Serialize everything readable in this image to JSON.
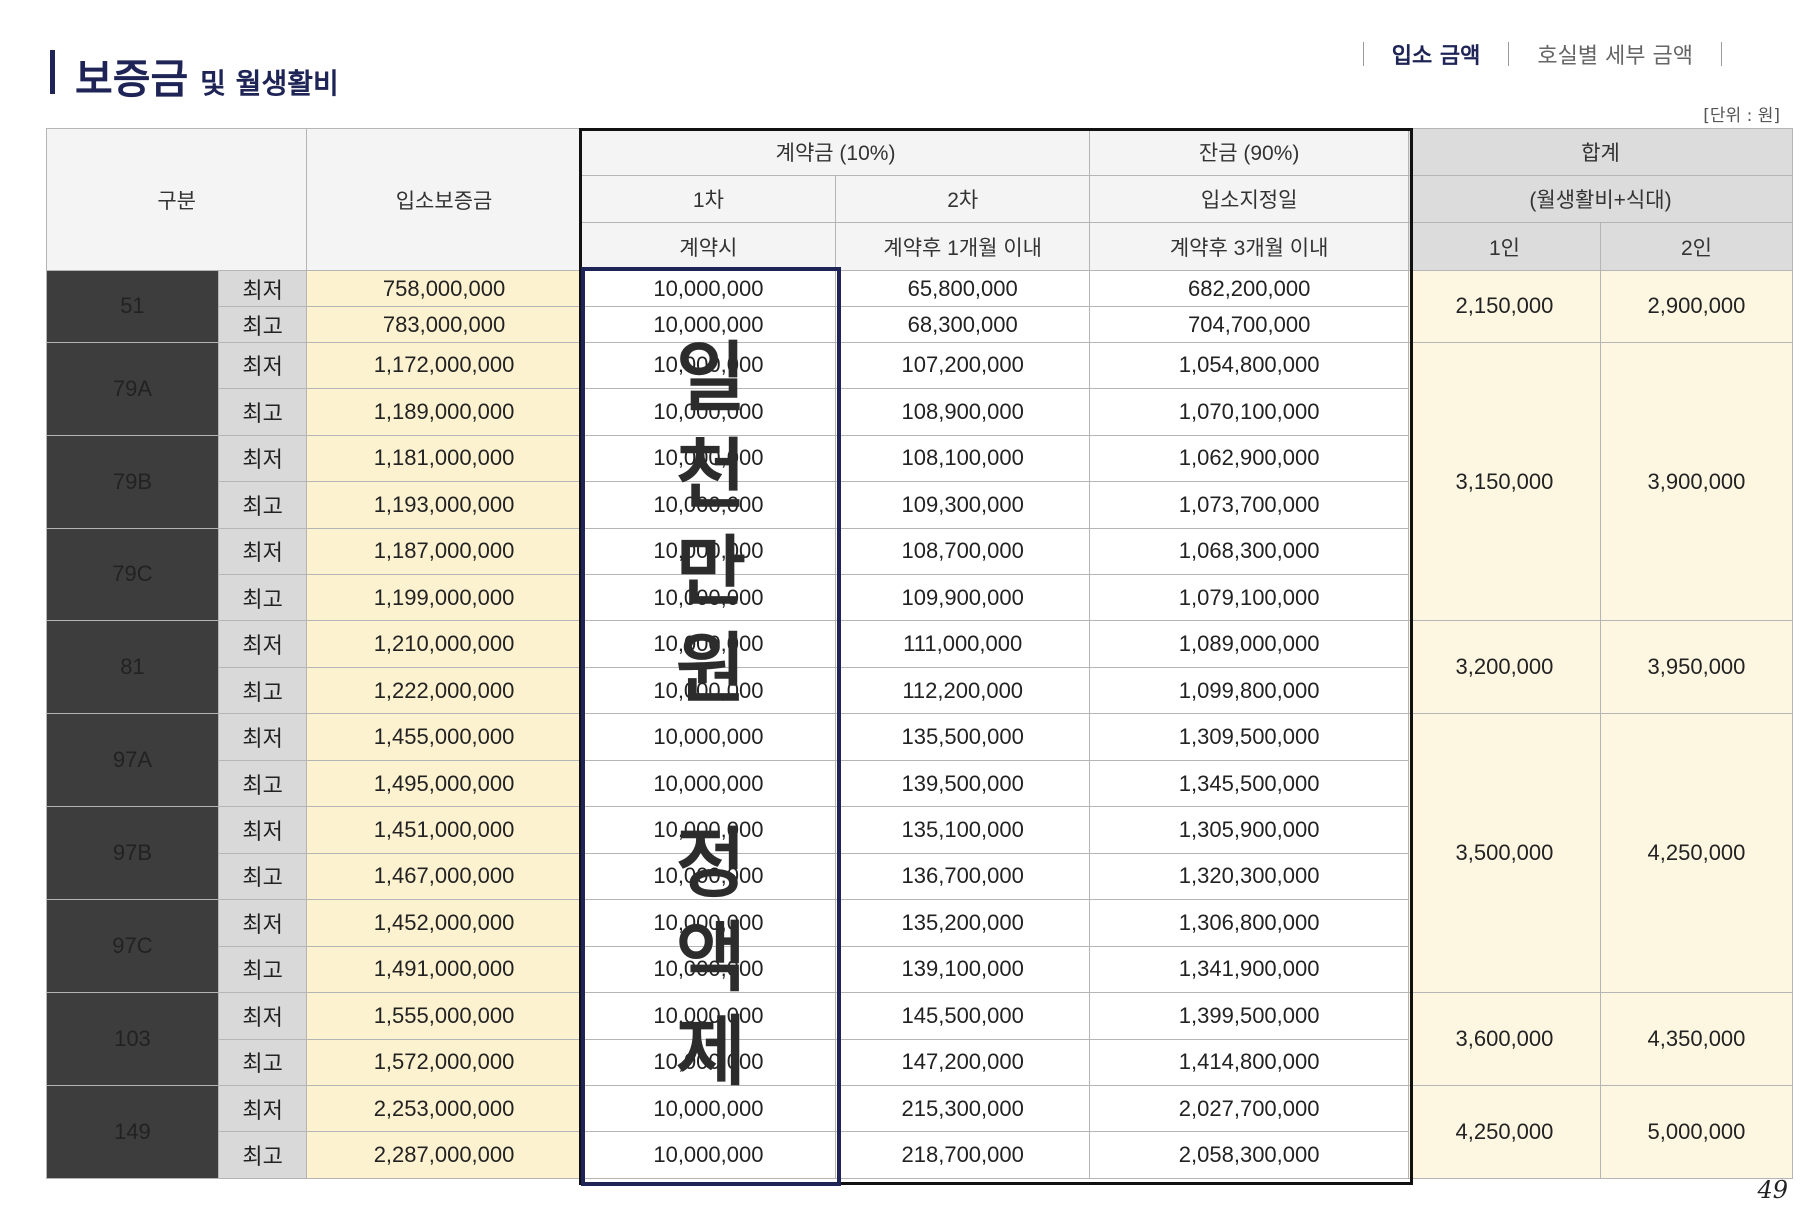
{
  "title": {
    "main": "보증금",
    "sub": "및 월생활비"
  },
  "nav": {
    "items": [
      {
        "label": "입소 금액"
      },
      {
        "label": "호실별 세부 금액"
      }
    ]
  },
  "unit_note": "[단위 : 원]",
  "headers": {
    "gubun": "구분",
    "deposit": "입소보증금",
    "contract": "계약금 (10%)",
    "balance": "잔금 (90%)",
    "total": "합계",
    "first": "1차",
    "second": "2차",
    "designated": "입소지정일",
    "total_sub": "(월생활비+식대)",
    "at_contract": "계약시",
    "within_1m": "계약후 1개월 이내",
    "within_3m": "계약후 3개월 이내",
    "one_person": "1인",
    "two_person": "2인"
  },
  "labels": {
    "min": "최저",
    "max": "최고"
  },
  "rows": [
    {
      "type": "51",
      "min": [
        "758,000,000",
        "10,000,000",
        "65,800,000",
        "682,200,000"
      ],
      "max": [
        "783,000,000",
        "10,000,000",
        "68,300,000",
        "704,700,000"
      ]
    },
    {
      "type": "79A",
      "min": [
        "1,172,000,000",
        "10,000,000",
        "107,200,000",
        "1,054,800,000"
      ],
      "max": [
        "1,189,000,000",
        "10,000,000",
        "108,900,000",
        "1,070,100,000"
      ]
    },
    {
      "type": "79B",
      "min": [
        "1,181,000,000",
        "10,000,000",
        "108,100,000",
        "1,062,900,000"
      ],
      "max": [
        "1,193,000,000",
        "10,000,000",
        "109,300,000",
        "1,073,700,000"
      ]
    },
    {
      "type": "79C",
      "min": [
        "1,187,000,000",
        "10,000,000",
        "108,700,000",
        "1,068,300,000"
      ],
      "max": [
        "1,199,000,000",
        "10,000,000",
        "109,900,000",
        "1,079,100,000"
      ]
    },
    {
      "type": "81",
      "min": [
        "1,210,000,000",
        "10,000,000",
        "111,000,000",
        "1,089,000,000"
      ],
      "max": [
        "1,222,000,000",
        "10,000,000",
        "112,200,000",
        "1,099,800,000"
      ]
    },
    {
      "type": "97A",
      "min": [
        "1,455,000,000",
        "10,000,000",
        "135,500,000",
        "1,309,500,000"
      ],
      "max": [
        "1,495,000,000",
        "10,000,000",
        "139,500,000",
        "1,345,500,000"
      ]
    },
    {
      "type": "97B",
      "min": [
        "1,451,000,000",
        "10,000,000",
        "135,100,000",
        "1,305,900,000"
      ],
      "max": [
        "1,467,000,000",
        "10,000,000",
        "136,700,000",
        "1,320,300,000"
      ]
    },
    {
      "type": "97C",
      "min": [
        "1,452,000,000",
        "10,000,000",
        "135,200,000",
        "1,306,800,000"
      ],
      "max": [
        "1,491,000,000",
        "10,000,000",
        "139,100,000",
        "1,341,900,000"
      ]
    },
    {
      "type": "103",
      "min": [
        "1,555,000,000",
        "10,000,000",
        "145,500,000",
        "1,399,500,000"
      ],
      "max": [
        "1,572,000,000",
        "10,000,000",
        "147,200,000",
        "1,414,800,000"
      ]
    },
    {
      "type": "149",
      "min": [
        "2,253,000,000",
        "10,000,000",
        "215,300,000",
        "2,027,700,000"
      ],
      "max": [
        "2,287,000,000",
        "10,000,000",
        "218,700,000",
        "2,058,300,000"
      ]
    }
  ],
  "totals": [
    {
      "one": "2,150,000",
      "two": "2,900,000"
    },
    {
      "one": "3,150,000",
      "two": "3,900,000"
    },
    {
      "one": "3,200,000",
      "two": "3,950,000"
    },
    {
      "one": "3,500,000",
      "two": "4,250,000"
    },
    {
      "one": "3,600,000",
      "two": "4,350,000"
    },
    {
      "one": "4,250,000",
      "two": "5,000,000"
    }
  ],
  "overlay": {
    "chars": [
      "일",
      "천",
      "만",
      "원",
      "정",
      "액",
      "제"
    ]
  },
  "page_number": "49"
}
